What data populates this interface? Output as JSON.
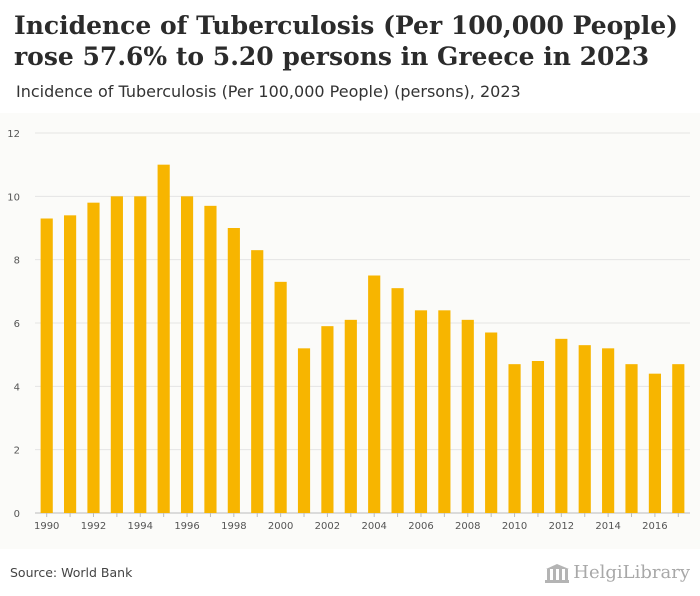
{
  "title": "Incidence of Tuberculosis (Per 100,000 People) rose 57.6% to 5.20 persons in Greece in 2023",
  "subtitle": "Incidence of Tuberculosis (Per 100,000 People) (persons), 2023",
  "source": "Source: World Bank",
  "logo_text": "HelgiLibrary",
  "colors": {
    "bar": "#f7b500",
    "grid": "#e4e4e4",
    "axis_text": "#555555"
  },
  "chart_data": {
    "type": "bar",
    "categories": [
      "1990",
      "1991",
      "1992",
      "1993",
      "1994",
      "1995",
      "1996",
      "1997",
      "1998",
      "1999",
      "2000",
      "2001",
      "2002",
      "2003",
      "2004",
      "2005",
      "2006",
      "2007",
      "2008",
      "2009",
      "2010",
      "2011",
      "2012",
      "2013",
      "2014",
      "2015",
      "2016",
      "2017"
    ],
    "values": [
      9.3,
      9.4,
      9.8,
      10.0,
      10.0,
      11.0,
      10.0,
      9.7,
      9.0,
      8.3,
      7.3,
      5.2,
      5.9,
      6.1,
      7.5,
      7.1,
      6.4,
      6.4,
      6.1,
      5.7,
      4.7,
      4.8,
      5.5,
      5.3,
      5.2,
      4.7,
      4.4,
      4.7
    ],
    "x_tick_labels": [
      "1990",
      "1992",
      "1994",
      "1996",
      "1998",
      "2000",
      "2002",
      "2004",
      "2006",
      "2008",
      "2010",
      "2012",
      "2014",
      "2016"
    ],
    "y_ticks": [
      0,
      2,
      4,
      6,
      8,
      10,
      12
    ],
    "ylim": [
      0,
      12
    ],
    "grid": true,
    "legend": "none"
  }
}
